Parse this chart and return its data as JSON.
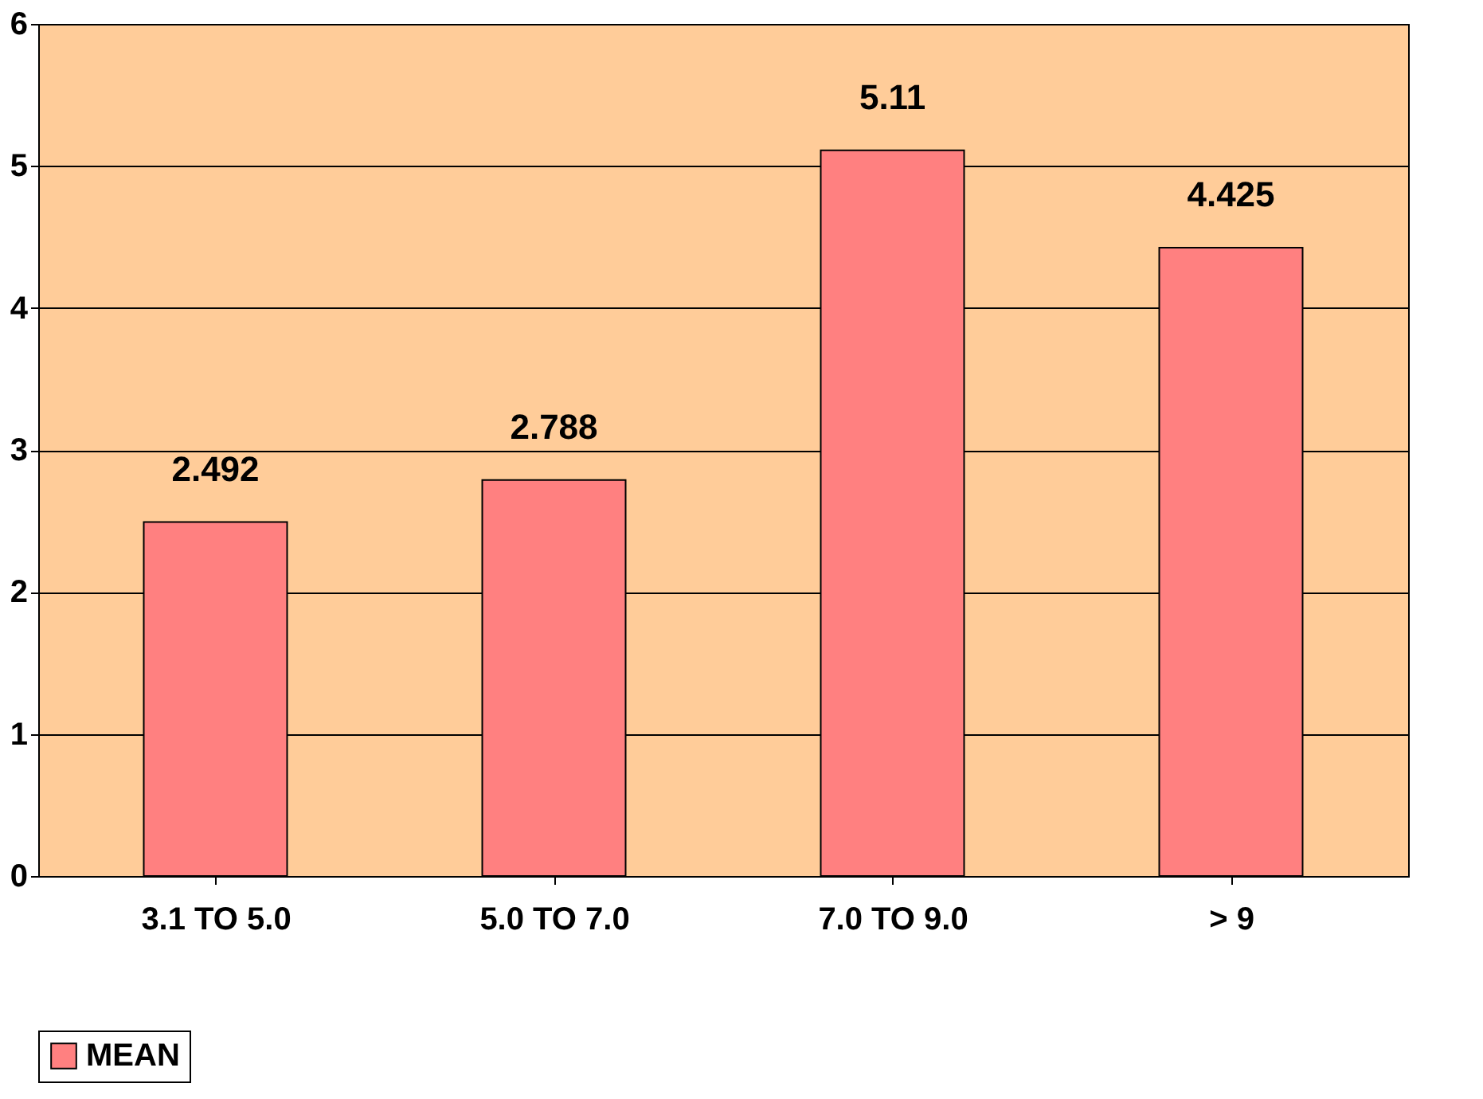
{
  "chart_data": {
    "type": "bar",
    "categories": [
      "3.1 TO 5.0",
      "5.0 TO 7.0",
      "7.0 TO 9.0",
      "> 9"
    ],
    "series": [
      {
        "name": "MEAN",
        "color": "#ff8080",
        "values": [
          2.492,
          2.788,
          5.11,
          4.425
        ]
      }
    ],
    "ylim": [
      0,
      6
    ],
    "yticks": [
      0,
      1,
      2,
      3,
      4,
      5,
      6
    ],
    "grid": "y",
    "legend": "bottom",
    "data_labels": true
  }
}
